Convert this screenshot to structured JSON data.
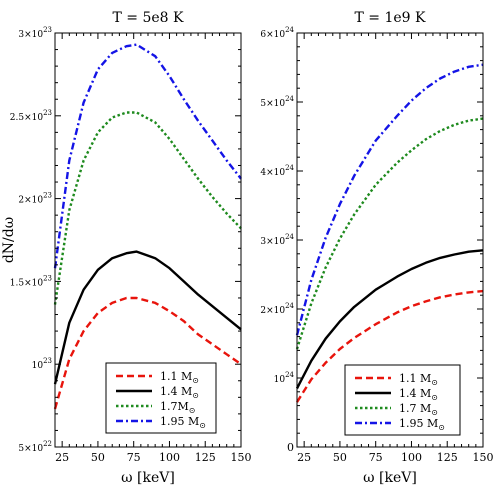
{
  "chart_data": [
    {
      "type": "line",
      "title": "T = 5e8 K",
      "xlabel": "ω [keV]",
      "ylabel": "dN/dω",
      "xlim": [
        20,
        150
      ],
      "ylim": [
        5e+22,
        3e+23
      ],
      "xticks": [
        "25",
        "50",
        "75",
        "100",
        "125",
        "150"
      ],
      "yticks": [
        {
          "mantissa": "5",
          "exp": "22",
          "value": 5e+22
        },
        {
          "mantissa": "",
          "exp": "23",
          "value": 1e+23
        },
        {
          "mantissa": "1.5",
          "exp": "23",
          "value": 1.5e+23
        },
        {
          "mantissa": "2",
          "exp": "23",
          "value": 2e+23
        },
        {
          "mantissa": "2.5",
          "exp": "23",
          "value": 2.5e+23
        },
        {
          "mantissa": "3",
          "exp": "23",
          "value": 3e+23
        }
      ],
      "legend": {
        "position": "bottom-center"
      },
      "series": [
        {
          "name": "1.1 M",
          "sub": "⊙",
          "color": "#e8140c",
          "dash": "dash",
          "points": [
            [
              20,
              7.3e+22
            ],
            [
              30,
              1.03e+23
            ],
            [
              40,
              1.2e+23
            ],
            [
              50,
              1.31e+23
            ],
            [
              60,
              1.37e+23
            ],
            [
              70,
              1.4e+23
            ],
            [
              77,
              1.4e+23
            ],
            [
              90,
              1.37e+23
            ],
            [
              100,
              1.32e+23
            ],
            [
              110,
              1.26e+23
            ],
            [
              120,
              1.18e+23
            ],
            [
              130,
              1.12e+23
            ],
            [
              140,
              1.06e+23
            ],
            [
              150,
              1e+23
            ]
          ]
        },
        {
          "name": "1.4 M",
          "sub": "⊙",
          "color": "#000000",
          "dash": "solid",
          "points": [
            [
              20,
              8.8e+22
            ],
            [
              30,
              1.25e+23
            ],
            [
              40,
              1.45e+23
            ],
            [
              50,
              1.57e+23
            ],
            [
              60,
              1.64e+23
            ],
            [
              70,
              1.67e+23
            ],
            [
              77,
              1.68e+23
            ],
            [
              90,
              1.64e+23
            ],
            [
              100,
              1.58e+23
            ],
            [
              110,
              1.5e+23
            ],
            [
              120,
              1.42e+23
            ],
            [
              130,
              1.35e+23
            ],
            [
              140,
              1.28e+23
            ],
            [
              150,
              1.21e+23
            ]
          ]
        },
        {
          "name": "1.7M",
          "sub": "⊙",
          "color": "#1e8a1e",
          "dash": "dot",
          "points": [
            [
              20,
              1.36e+23
            ],
            [
              30,
              1.93e+23
            ],
            [
              40,
              2.23e+23
            ],
            [
              50,
              2.4e+23
            ],
            [
              60,
              2.49e+23
            ],
            [
              70,
              2.52e+23
            ],
            [
              77,
              2.52e+23
            ],
            [
              90,
              2.46e+23
            ],
            [
              100,
              2.36e+23
            ],
            [
              110,
              2.24e+23
            ],
            [
              120,
              2.12e+23
            ],
            [
              130,
              2.01e+23
            ],
            [
              140,
              1.91e+23
            ],
            [
              150,
              1.82e+23
            ]
          ]
        },
        {
          "name": "1.95 M",
          "sub": "⊙",
          "color": "#1414e6",
          "dash": "dashdot",
          "points": [
            [
              20,
              1.58e+23
            ],
            [
              30,
              2.23e+23
            ],
            [
              40,
              2.58e+23
            ],
            [
              50,
              2.78e+23
            ],
            [
              60,
              2.88e+23
            ],
            [
              70,
              2.92e+23
            ],
            [
              77,
              2.93e+23
            ],
            [
              90,
              2.86e+23
            ],
            [
              100,
              2.74e+23
            ],
            [
              110,
              2.6e+23
            ],
            [
              120,
              2.47e+23
            ],
            [
              130,
              2.35e+23
            ],
            [
              140,
              2.23e+23
            ],
            [
              150,
              2.12e+23
            ]
          ]
        }
      ]
    },
    {
      "type": "line",
      "title": "T = 1e9 K",
      "xlabel": "ω [keV]",
      "ylabel": "",
      "xlim": [
        20,
        150
      ],
      "ylim": [
        0,
        6e+24
      ],
      "xticks": [
        "25",
        "50",
        "75",
        "100",
        "125",
        "150"
      ],
      "yticks": [
        {
          "mantissa": "0",
          "exp": "",
          "value": 0
        },
        {
          "mantissa": "",
          "exp": "24",
          "value": 1e+24
        },
        {
          "mantissa": "2",
          "exp": "24",
          "value": 2e+24
        },
        {
          "mantissa": "3",
          "exp": "24",
          "value": 3e+24
        },
        {
          "mantissa": "4",
          "exp": "24",
          "value": 4e+24
        },
        {
          "mantissa": "5",
          "exp": "24",
          "value": 5e+24
        },
        {
          "mantissa": "6",
          "exp": "24",
          "value": 6e+24
        }
      ],
      "legend": {
        "position": "bottom-center"
      },
      "series": [
        {
          "name": "1.1 M",
          "sub": "⊙",
          "color": "#e8140c",
          "dash": "dash",
          "points": [
            [
              20,
              6.5e+23
            ],
            [
              30,
              9.8e+23
            ],
            [
              40,
              1.22e+24
            ],
            [
              50,
              1.42e+24
            ],
            [
              60,
              1.58e+24
            ],
            [
              75,
              1.78e+24
            ],
            [
              90,
              1.95e+24
            ],
            [
              100,
              2.04e+24
            ],
            [
              110,
              2.11e+24
            ],
            [
              120,
              2.17e+24
            ],
            [
              130,
              2.21e+24
            ],
            [
              140,
              2.24e+24
            ],
            [
              150,
              2.26e+24
            ]
          ]
        },
        {
          "name": "1.4 M",
          "sub": "⊙",
          "color": "#000000",
          "dash": "solid",
          "points": [
            [
              20,
              8.5e+23
            ],
            [
              30,
              1.25e+24
            ],
            [
              40,
              1.57e+24
            ],
            [
              50,
              1.82e+24
            ],
            [
              60,
              2.03e+24
            ],
            [
              75,
              2.28e+24
            ],
            [
              90,
              2.47e+24
            ],
            [
              100,
              2.58e+24
            ],
            [
              110,
              2.67e+24
            ],
            [
              120,
              2.74e+24
            ],
            [
              130,
              2.79e+24
            ],
            [
              140,
              2.83e+24
            ],
            [
              150,
              2.85e+24
            ]
          ]
        },
        {
          "name": "1.7 M",
          "sub": "⊙",
          "color": "#1e8a1e",
          "dash": "dot",
          "points": [
            [
              20,
              1.42e+24
            ],
            [
              30,
              2.08e+24
            ],
            [
              40,
              2.6e+24
            ],
            [
              50,
              3.02e+24
            ],
            [
              60,
              3.37e+24
            ],
            [
              75,
              3.8e+24
            ],
            [
              90,
              4.12e+24
            ],
            [
              100,
              4.3e+24
            ],
            [
              110,
              4.46e+24
            ],
            [
              120,
              4.58e+24
            ],
            [
              130,
              4.67e+24
            ],
            [
              140,
              4.73e+24
            ],
            [
              150,
              4.76e+24
            ]
          ]
        },
        {
          "name": "1.95 M",
          "sub": "⊙",
          "color": "#1414e6",
          "dash": "dashdot",
          "points": [
            [
              20,
              1.62e+24
            ],
            [
              30,
              2.42e+24
            ],
            [
              40,
              3.03e+24
            ],
            [
              50,
              3.52e+24
            ],
            [
              60,
              3.93e+24
            ],
            [
              75,
              4.44e+24
            ],
            [
              90,
              4.8e+24
            ],
            [
              100,
              5.02e+24
            ],
            [
              110,
              5.2e+24
            ],
            [
              120,
              5.34e+24
            ],
            [
              130,
              5.44e+24
            ],
            [
              140,
              5.51e+24
            ],
            [
              150,
              5.54e+24
            ]
          ]
        }
      ]
    }
  ]
}
